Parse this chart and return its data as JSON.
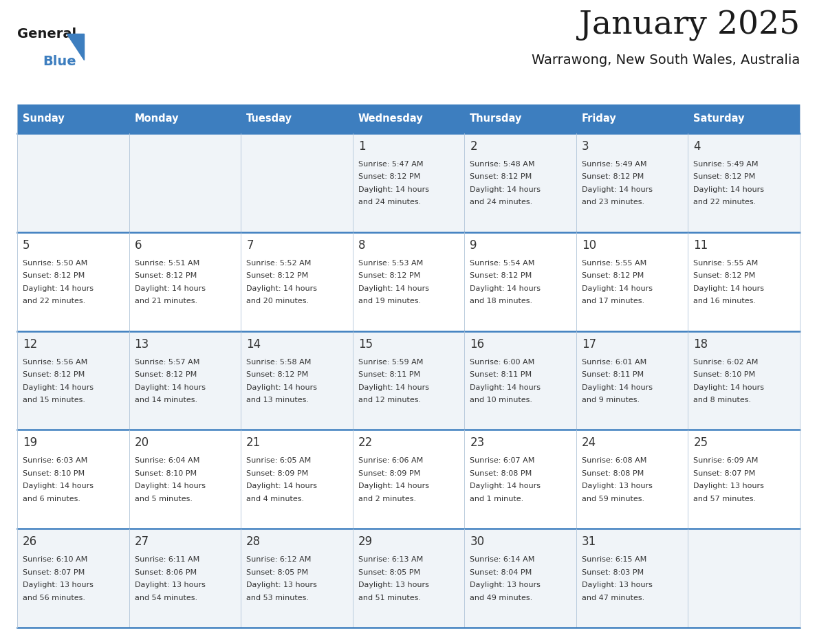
{
  "title": "January 2025",
  "subtitle": "Warrawong, New South Wales, Australia",
  "header_bg": "#3d7ebf",
  "header_text": "#ffffff",
  "row_bg_odd": "#f0f4f8",
  "row_bg_even": "#ffffff",
  "border_color": "#3d7ebf",
  "sep_color": "#b0c4d8",
  "text_color": "#333333",
  "days_of_week": [
    "Sunday",
    "Monday",
    "Tuesday",
    "Wednesday",
    "Thursday",
    "Friday",
    "Saturday"
  ],
  "calendar_data": [
    [
      null,
      null,
      null,
      {
        "day": 1,
        "sunrise": "5:47 AM",
        "sunset": "8:12 PM",
        "daylight_h": "14 hours",
        "daylight_m": "and 24 minutes."
      },
      {
        "day": 2,
        "sunrise": "5:48 AM",
        "sunset": "8:12 PM",
        "daylight_h": "14 hours",
        "daylight_m": "and 24 minutes."
      },
      {
        "day": 3,
        "sunrise": "5:49 AM",
        "sunset": "8:12 PM",
        "daylight_h": "14 hours",
        "daylight_m": "and 23 minutes."
      },
      {
        "day": 4,
        "sunrise": "5:49 AM",
        "sunset": "8:12 PM",
        "daylight_h": "14 hours",
        "daylight_m": "and 22 minutes."
      }
    ],
    [
      {
        "day": 5,
        "sunrise": "5:50 AM",
        "sunset": "8:12 PM",
        "daylight_h": "14 hours",
        "daylight_m": "and 22 minutes."
      },
      {
        "day": 6,
        "sunrise": "5:51 AM",
        "sunset": "8:12 PM",
        "daylight_h": "14 hours",
        "daylight_m": "and 21 minutes."
      },
      {
        "day": 7,
        "sunrise": "5:52 AM",
        "sunset": "8:12 PM",
        "daylight_h": "14 hours",
        "daylight_m": "and 20 minutes."
      },
      {
        "day": 8,
        "sunrise": "5:53 AM",
        "sunset": "8:12 PM",
        "daylight_h": "14 hours",
        "daylight_m": "and 19 minutes."
      },
      {
        "day": 9,
        "sunrise": "5:54 AM",
        "sunset": "8:12 PM",
        "daylight_h": "14 hours",
        "daylight_m": "and 18 minutes."
      },
      {
        "day": 10,
        "sunrise": "5:55 AM",
        "sunset": "8:12 PM",
        "daylight_h": "14 hours",
        "daylight_m": "and 17 minutes."
      },
      {
        "day": 11,
        "sunrise": "5:55 AM",
        "sunset": "8:12 PM",
        "daylight_h": "14 hours",
        "daylight_m": "and 16 minutes."
      }
    ],
    [
      {
        "day": 12,
        "sunrise": "5:56 AM",
        "sunset": "8:12 PM",
        "daylight_h": "14 hours",
        "daylight_m": "and 15 minutes."
      },
      {
        "day": 13,
        "sunrise": "5:57 AM",
        "sunset": "8:12 PM",
        "daylight_h": "14 hours",
        "daylight_m": "and 14 minutes."
      },
      {
        "day": 14,
        "sunrise": "5:58 AM",
        "sunset": "8:12 PM",
        "daylight_h": "14 hours",
        "daylight_m": "and 13 minutes."
      },
      {
        "day": 15,
        "sunrise": "5:59 AM",
        "sunset": "8:11 PM",
        "daylight_h": "14 hours",
        "daylight_m": "and 12 minutes."
      },
      {
        "day": 16,
        "sunrise": "6:00 AM",
        "sunset": "8:11 PM",
        "daylight_h": "14 hours",
        "daylight_m": "and 10 minutes."
      },
      {
        "day": 17,
        "sunrise": "6:01 AM",
        "sunset": "8:11 PM",
        "daylight_h": "14 hours",
        "daylight_m": "and 9 minutes."
      },
      {
        "day": 18,
        "sunrise": "6:02 AM",
        "sunset": "8:10 PM",
        "daylight_h": "14 hours",
        "daylight_m": "and 8 minutes."
      }
    ],
    [
      {
        "day": 19,
        "sunrise": "6:03 AM",
        "sunset": "8:10 PM",
        "daylight_h": "14 hours",
        "daylight_m": "and 6 minutes."
      },
      {
        "day": 20,
        "sunrise": "6:04 AM",
        "sunset": "8:10 PM",
        "daylight_h": "14 hours",
        "daylight_m": "and 5 minutes."
      },
      {
        "day": 21,
        "sunrise": "6:05 AM",
        "sunset": "8:09 PM",
        "daylight_h": "14 hours",
        "daylight_m": "and 4 minutes."
      },
      {
        "day": 22,
        "sunrise": "6:06 AM",
        "sunset": "8:09 PM",
        "daylight_h": "14 hours",
        "daylight_m": "and 2 minutes."
      },
      {
        "day": 23,
        "sunrise": "6:07 AM",
        "sunset": "8:08 PM",
        "daylight_h": "14 hours",
        "daylight_m": "and 1 minute."
      },
      {
        "day": 24,
        "sunrise": "6:08 AM",
        "sunset": "8:08 PM",
        "daylight_h": "13 hours",
        "daylight_m": "and 59 minutes."
      },
      {
        "day": 25,
        "sunrise": "6:09 AM",
        "sunset": "8:07 PM",
        "daylight_h": "13 hours",
        "daylight_m": "and 57 minutes."
      }
    ],
    [
      {
        "day": 26,
        "sunrise": "6:10 AM",
        "sunset": "8:07 PM",
        "daylight_h": "13 hours",
        "daylight_m": "and 56 minutes."
      },
      {
        "day": 27,
        "sunrise": "6:11 AM",
        "sunset": "8:06 PM",
        "daylight_h": "13 hours",
        "daylight_m": "and 54 minutes."
      },
      {
        "day": 28,
        "sunrise": "6:12 AM",
        "sunset": "8:05 PM",
        "daylight_h": "13 hours",
        "daylight_m": "and 53 minutes."
      },
      {
        "day": 29,
        "sunrise": "6:13 AM",
        "sunset": "8:05 PM",
        "daylight_h": "13 hours",
        "daylight_m": "and 51 minutes."
      },
      {
        "day": 30,
        "sunrise": "6:14 AM",
        "sunset": "8:04 PM",
        "daylight_h": "13 hours",
        "daylight_m": "and 49 minutes."
      },
      {
        "day": 31,
        "sunrise": "6:15 AM",
        "sunset": "8:03 PM",
        "daylight_h": "13 hours",
        "daylight_m": "and 47 minutes."
      },
      null
    ]
  ],
  "logo_general_color": "#1a1a1a",
  "logo_blue_color": "#3d7ebf"
}
